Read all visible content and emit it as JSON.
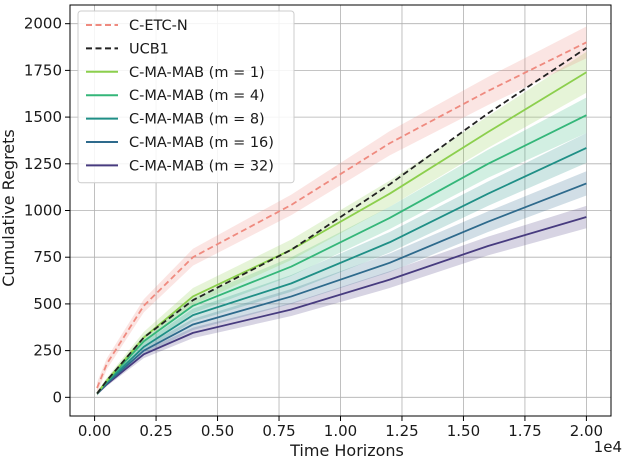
{
  "chart_data": {
    "type": "line",
    "xlabel": "Time Horizons",
    "ylabel": "Cumulative Regrets",
    "x_offset_text": "1e4",
    "x_scale": 10000,
    "xlim": [
      -1000,
      21000
    ],
    "ylim": [
      -100,
      2100
    ],
    "x_ticks": [
      0,
      2500,
      5000,
      7500,
      10000,
      12500,
      15000,
      17500,
      20000
    ],
    "x_tick_labels": [
      "0.00",
      "0.25",
      "0.50",
      "0.75",
      "1.00",
      "1.25",
      "1.50",
      "1.75",
      "2.00"
    ],
    "y_ticks": [
      0,
      250,
      500,
      750,
      1000,
      1250,
      1500,
      1750,
      2000
    ],
    "y_tick_labels": [
      "0",
      "250",
      "500",
      "750",
      "1000",
      "1250",
      "1500",
      "1750",
      "2000"
    ],
    "grid": true,
    "legend_position": "upper-left",
    "x": [
      100,
      500,
      2000,
      4000,
      8000,
      12000,
      16000,
      20000
    ],
    "series": [
      {
        "name": "C-ETC-N",
        "color": "#ef8a7f",
        "dash": "dashed",
        "values": [
          50,
          180,
          490,
          750,
          1030,
          1360,
          1640,
          1900
        ],
        "band": [
          30,
          30,
          35,
          45,
          55,
          65,
          75,
          85
        ]
      },
      {
        "name": "UCB1",
        "color": "#222222",
        "dash": "dashed",
        "values": [
          20,
          90,
          320,
          520,
          790,
          1140,
          1520,
          1870
        ],
        "band": [
          0,
          0,
          0,
          0,
          0,
          0,
          0,
          0
        ]
      },
      {
        "name": "C-MA-MAB (m = 1)",
        "color": "#8ccf4d",
        "dash": "solid",
        "values": [
          20,
          90,
          320,
          540,
          790,
          1090,
          1420,
          1740
        ],
        "band": [
          10,
          15,
          30,
          45,
          55,
          70,
          85,
          110
        ]
      },
      {
        "name": "C-MA-MAB (m = 4)",
        "color": "#34b679",
        "dash": "solid",
        "values": [
          20,
          85,
          300,
          490,
          700,
          960,
          1250,
          1510
        ],
        "band": [
          10,
          15,
          30,
          40,
          50,
          60,
          75,
          95
        ]
      },
      {
        "name": "C-MA-MAB (m = 8)",
        "color": "#1f8f86",
        "dash": "solid",
        "values": [
          20,
          80,
          270,
          440,
          610,
          830,
          1090,
          1335
        ],
        "band": [
          10,
          15,
          25,
          35,
          45,
          55,
          65,
          80
        ]
      },
      {
        "name": "C-MA-MAB (m = 16)",
        "color": "#2e6a8c",
        "dash": "solid",
        "values": [
          20,
          75,
          250,
          390,
          540,
          720,
          940,
          1145
        ],
        "band": [
          10,
          12,
          22,
          30,
          40,
          50,
          55,
          65
        ]
      },
      {
        "name": "C-MA-MAB (m = 32)",
        "color": "#473b7f",
        "dash": "solid",
        "values": [
          20,
          70,
          230,
          345,
          470,
          630,
          810,
          965
        ],
        "band": [
          8,
          10,
          20,
          28,
          35,
          45,
          50,
          60
        ]
      }
    ]
  }
}
